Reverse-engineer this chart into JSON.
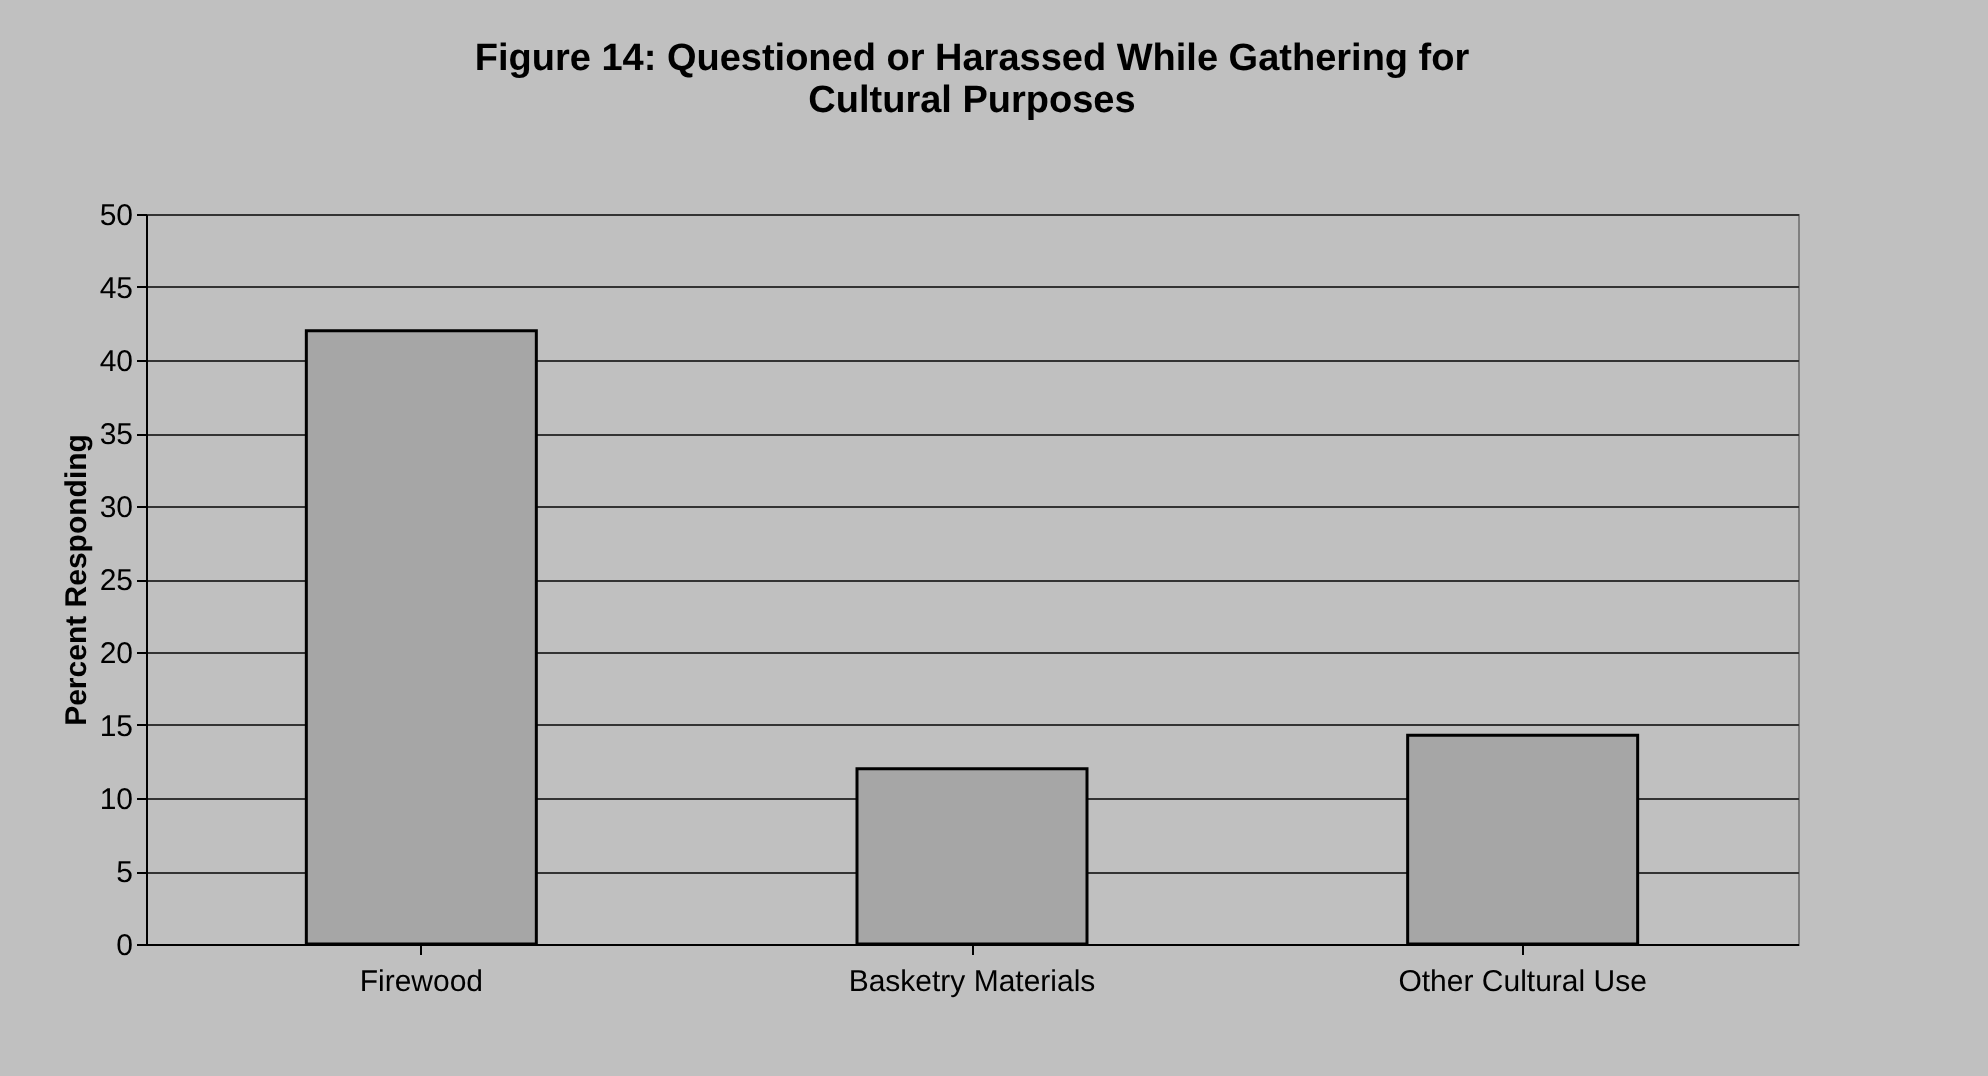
{
  "chart_data": {
    "type": "bar",
    "title": [
      "Figure 14: Questioned or Harassed While Gathering for",
      "Cultural Purposes"
    ],
    "ylabel": "Percent Responding",
    "categories": [
      "Firewood",
      "Basketry Materials",
      "Other Cultural Use"
    ],
    "values": [
      42,
      12,
      14.3
    ],
    "color": "#a6a6a6",
    "ylim": [
      0,
      50
    ],
    "yticks": [
      0,
      5,
      10,
      15,
      20,
      25,
      30,
      35,
      40,
      45,
      50
    ],
    "grid": "y"
  }
}
